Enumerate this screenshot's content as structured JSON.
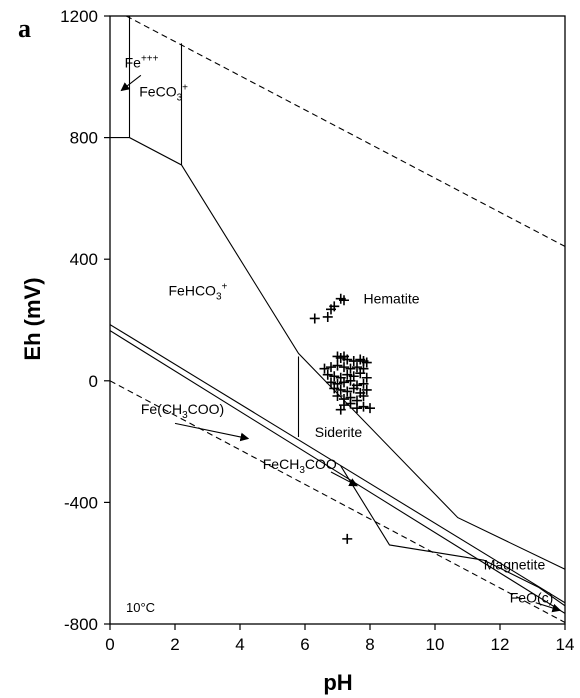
{
  "panel_label": "a",
  "chart_data": {
    "type": "scatter",
    "title": "",
    "xlabel": "pH",
    "ylabel": "Eh (mV)",
    "xlim": [
      0,
      14
    ],
    "ylim": [
      -800,
      1200
    ],
    "x_ticks": [
      0,
      2,
      4,
      6,
      8,
      10,
      12,
      14
    ],
    "y_ticks": [
      -800,
      -400,
      0,
      400,
      800,
      1200
    ],
    "temperature_label": "10°C",
    "water_stability_lines": [
      {
        "name": "upper",
        "style": "dashed",
        "points": [
          [
            0.5,
            1200
          ],
          [
            14,
            442
          ]
        ]
      },
      {
        "name": "lower",
        "style": "dashed",
        "points": [
          [
            0,
            0
          ],
          [
            14,
            -795
          ]
        ]
      }
    ],
    "boundaries": [
      {
        "style": "solid",
        "points": [
          [
            0,
            800
          ],
          [
            0.6,
            800
          ],
          [
            2.2,
            710
          ],
          [
            5.8,
            90
          ],
          [
            10.7,
            -450
          ],
          [
            14,
            -620
          ]
        ]
      },
      {
        "style": "solid",
        "points": [
          [
            0.6,
            800
          ],
          [
            0.6,
            1200
          ]
        ]
      },
      {
        "style": "solid",
        "points": [
          [
            2.2,
            710
          ],
          [
            2.2,
            1110
          ]
        ]
      },
      {
        "style": "solid",
        "points": [
          [
            0,
            185
          ],
          [
            14,
            -730
          ]
        ]
      },
      {
        "style": "solid",
        "points": [
          [
            0,
            165
          ],
          [
            14,
            -765
          ]
        ]
      },
      {
        "style": "solid",
        "points": [
          [
            5.8,
            80
          ],
          [
            5.8,
            -185
          ]
        ]
      },
      {
        "style": "solid",
        "points": [
          [
            7.1,
            -280
          ],
          [
            8.6,
            -540
          ],
          [
            11.5,
            -590
          ],
          [
            13.2,
            -680
          ],
          [
            14,
            -740
          ]
        ]
      }
    ],
    "points": [
      [
        7.2,
        265
      ],
      [
        7.1,
        270
      ],
      [
        6.3,
        205
      ],
      [
        6.7,
        210
      ],
      [
        6.8,
        235
      ],
      [
        6.9,
        245
      ],
      [
        7.3,
        -520
      ],
      [
        7.0,
        80
      ],
      [
        7.1,
        75
      ],
      [
        7.2,
        80
      ],
      [
        7.3,
        70
      ],
      [
        7.5,
        65
      ],
      [
        7.7,
        70
      ],
      [
        7.8,
        65
      ],
      [
        7.9,
        60
      ],
      [
        6.6,
        40
      ],
      [
        6.8,
        45
      ],
      [
        7.0,
        50
      ],
      [
        7.2,
        45
      ],
      [
        7.4,
        40
      ],
      [
        7.6,
        45
      ],
      [
        7.8,
        40
      ],
      [
        6.7,
        20
      ],
      [
        6.9,
        15
      ],
      [
        7.1,
        10
      ],
      [
        7.3,
        20
      ],
      [
        7.5,
        15
      ],
      [
        7.7,
        25
      ],
      [
        7.9,
        10
      ],
      [
        6.8,
        -5
      ],
      [
        7.0,
        -10
      ],
      [
        7.2,
        -5
      ],
      [
        7.4,
        0
      ],
      [
        7.6,
        -15
      ],
      [
        7.8,
        -10
      ],
      [
        6.9,
        -25
      ],
      [
        7.1,
        -30
      ],
      [
        7.3,
        -35
      ],
      [
        7.5,
        -25
      ],
      [
        7.7,
        -40
      ],
      [
        7.9,
        -30
      ],
      [
        7.0,
        -50
      ],
      [
        7.2,
        -60
      ],
      [
        7.4,
        -55
      ],
      [
        7.6,
        -65
      ],
      [
        7.8,
        -50
      ],
      [
        7.2,
        -80
      ],
      [
        7.4,
        -75
      ],
      [
        7.6,
        -90
      ],
      [
        7.8,
        -85
      ],
      [
        8.0,
        -90
      ],
      [
        7.1,
        -95
      ]
    ],
    "annotations": [
      {
        "text": "Fe+++",
        "x": 0.45,
        "y": 1030
      },
      {
        "text": "FeCO3+",
        "x": 0.9,
        "y": 935
      },
      {
        "text": "FeHCO3+",
        "x": 1.8,
        "y": 280
      },
      {
        "text": "Hematite",
        "x": 7.8,
        "y": 255
      },
      {
        "text": "Siderite",
        "x": 6.3,
        "y": -185
      },
      {
        "text": "Fe(CH3COO)",
        "x": 0.95,
        "y": -110
      },
      {
        "text": "FeCH3COO",
        "x": 4.7,
        "y": -290
      },
      {
        "text": "Magnetite",
        "x": 11.5,
        "y": -620
      },
      {
        "text": "FeO(c)",
        "x": 12.3,
        "y": -730
      }
    ]
  }
}
